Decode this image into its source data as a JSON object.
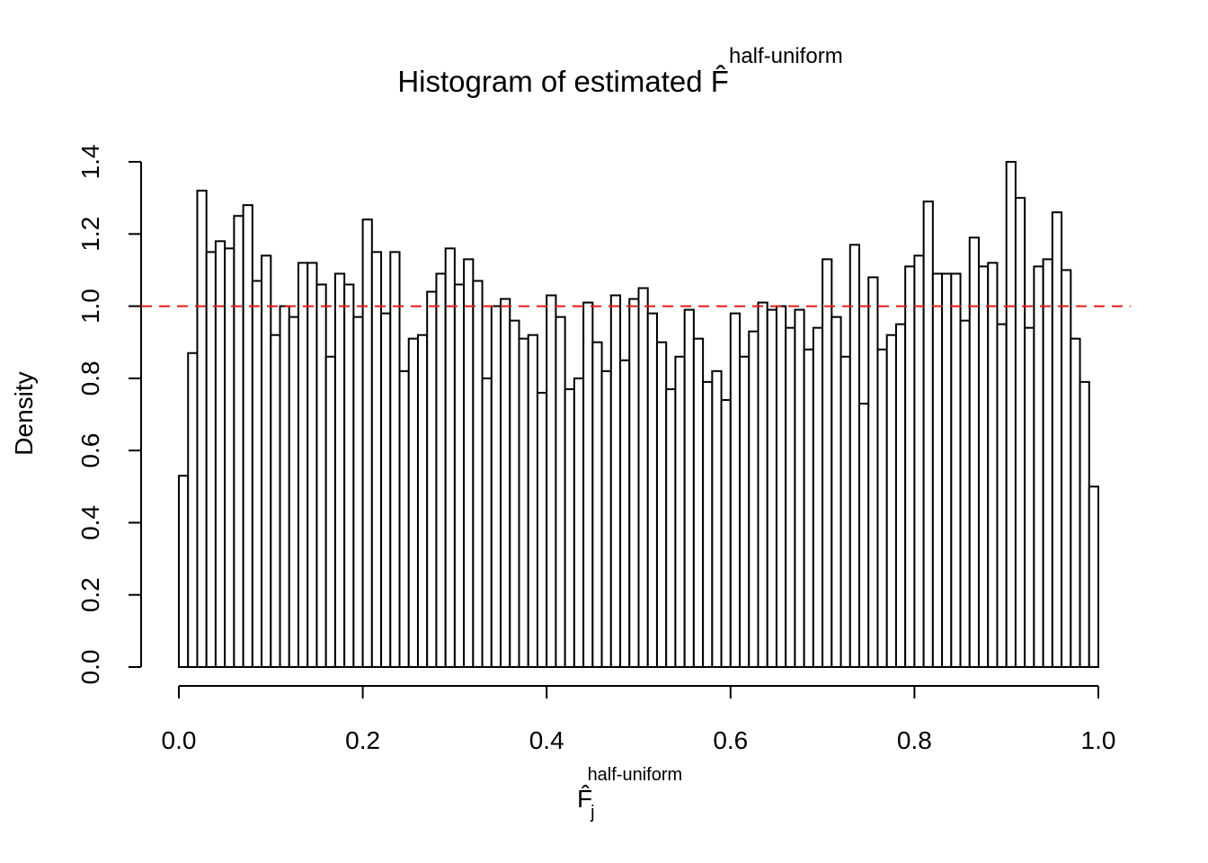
{
  "chart_data": {
    "type": "histogram",
    "title": "Histogram of estimated",
    "title_symbol": "F̂",
    "title_superscript": "half-uniform",
    "x_label": "F̂",
    "x_label_subscript": "j",
    "x_label_superscript": "half-uniform",
    "y_label": "Density",
    "bins": [
      0,
      0.01,
      0.02,
      0.03,
      0.04,
      0.05,
      0.06,
      0.07,
      0.08,
      0.09,
      0.1,
      0.11,
      0.12,
      0.13,
      0.14,
      0.15,
      0.16,
      0.17,
      0.18,
      0.19,
      0.2,
      0.21,
      0.22,
      0.23,
      0.24,
      0.25,
      0.26,
      0.27,
      0.28,
      0.29,
      0.3,
      0.31,
      0.32,
      0.33,
      0.34,
      0.35,
      0.36,
      0.37,
      0.38,
      0.39,
      0.4,
      0.41,
      0.42,
      0.43,
      0.44,
      0.45,
      0.46,
      0.47,
      0.48,
      0.49,
      0.5,
      0.51,
      0.52,
      0.53,
      0.54,
      0.55,
      0.56,
      0.57,
      0.58,
      0.59,
      0.6,
      0.61,
      0.62,
      0.63,
      0.64,
      0.65,
      0.66,
      0.67,
      0.68,
      0.69,
      0.7,
      0.71,
      0.72,
      0.73,
      0.74,
      0.75,
      0.76,
      0.77,
      0.78,
      0.79,
      0.8,
      0.81,
      0.82,
      0.83,
      0.84,
      0.85,
      0.86,
      0.87,
      0.88,
      0.89,
      0.9,
      0.91,
      0.92,
      0.93,
      0.94,
      0.95,
      0.96,
      0.97,
      0.98,
      0.99,
      1
    ],
    "values": [
      0.53,
      0.87,
      1.32,
      1.15,
      1.18,
      1.16,
      1.25,
      1.28,
      1.07,
      1.14,
      0.92,
      1.0,
      0.97,
      1.12,
      1.12,
      1.06,
      0.86,
      1.09,
      1.06,
      0.97,
      1.24,
      1.15,
      0.98,
      1.15,
      0.82,
      0.91,
      0.92,
      1.04,
      1.09,
      1.16,
      1.06,
      1.13,
      1.07,
      0.8,
      1.0,
      1.02,
      0.96,
      0.91,
      0.92,
      0.76,
      1.03,
      0.97,
      0.77,
      0.8,
      1.01,
      0.9,
      0.82,
      1.03,
      0.85,
      1.02,
      1.05,
      0.98,
      0.9,
      0.77,
      0.86,
      0.99,
      0.91,
      0.79,
      0.82,
      0.74,
      0.98,
      0.86,
      0.93,
      1.01,
      0.99,
      1.0,
      0.94,
      0.99,
      0.88,
      0.94,
      1.13,
      0.97,
      0.86,
      1.17,
      0.73,
      1.08,
      0.88,
      0.92,
      0.95,
      1.11,
      1.14,
      1.29,
      1.09,
      1.09,
      1.09,
      0.96,
      1.19,
      1.11,
      1.12,
      0.95,
      1.4,
      1.3,
      0.94,
      1.11,
      1.13,
      1.26,
      1.1,
      0.91,
      0.79,
      0.5
    ],
    "color": "#ffffff",
    "edge_color": "#000000",
    "reference_line": {
      "value": 1,
      "color": "#e41a1c"
    },
    "xlim": [
      0,
      1
    ],
    "ylim": [
      0,
      1.4
    ],
    "xticks": [
      {
        "value": 0,
        "label": "0.0"
      },
      0.2,
      0.4,
      0.6,
      0.8,
      {
        "value": 1,
        "label": "1.0"
      }
    ],
    "yticks": [
      {
        "value": 0,
        "label": "0.0"
      },
      0.2,
      0.4,
      0.6,
      0.8,
      {
        "value": 1,
        "label": "1.0"
      },
      1.2,
      1.4
    ]
  }
}
